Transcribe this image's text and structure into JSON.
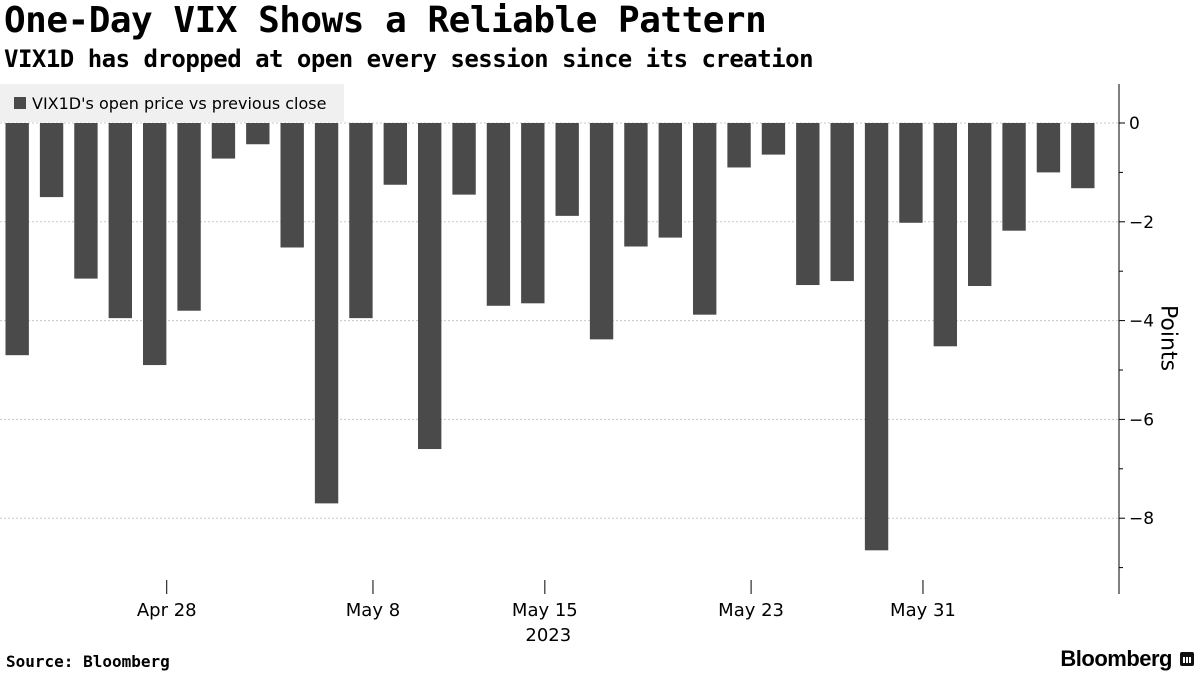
{
  "title": "One-Day VIX Shows a Reliable Pattern",
  "subtitle": "VIX1D has dropped at open every session since its creation",
  "source": "Source: Bloomberg",
  "brand": "Bloomberg",
  "colors": {
    "bar": "#4a4a4a",
    "grid": "#c8c8c8",
    "axis": "#000000",
    "legend_bg": "#f0f0f0"
  },
  "chart_data": {
    "type": "bar",
    "series": [
      {
        "name": "VIX1D's open price vs previous close",
        "values": [
          -4.7,
          -1.5,
          -3.15,
          -3.95,
          -4.9,
          -3.8,
          -0.72,
          -0.43,
          -2.52,
          -7.7,
          -3.95,
          -1.25,
          -6.6,
          -1.45,
          -3.7,
          -3.65,
          -1.88,
          -4.38,
          -2.5,
          -2.32,
          -3.88,
          -0.9,
          -0.64,
          -3.28,
          -3.2,
          -8.65,
          -2.02,
          -4.52,
          -3.3,
          -2.18,
          -1.0,
          -1.32
        ]
      }
    ],
    "x_ticks": [
      {
        "label": "Apr 28",
        "index": 4.35
      },
      {
        "label": "May 8",
        "index": 10.35
      },
      {
        "label": "May 15",
        "index": 15.35
      },
      {
        "label": "May 23",
        "index": 21.35
      },
      {
        "label": "May 31",
        "index": 26.35
      }
    ],
    "x_sublabel": {
      "label": "2023",
      "index": 15.45
    },
    "y_ticks": [
      0,
      -2,
      -4,
      -6,
      -8
    ],
    "ylim": [
      -9.5,
      0.8
    ],
    "ylabel": "Points",
    "grid": true,
    "legend": "top-left"
  }
}
